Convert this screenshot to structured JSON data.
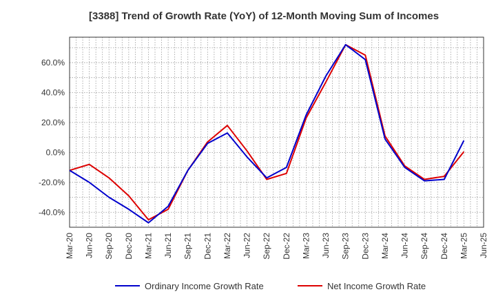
{
  "chart_data": {
    "type": "line",
    "title": "[3388]  Trend of Growth Rate (YoY) of 12-Month Moving Sum of Incomes",
    "xlabel": "",
    "ylabel": "",
    "x_tick_labels": [
      "Mar-20",
      "Jun-20",
      "Sep-20",
      "Dec-20",
      "Mar-21",
      "Jun-21",
      "Sep-21",
      "Dec-21",
      "Mar-22",
      "Jun-22",
      "Sep-22",
      "Dec-22",
      "Mar-23",
      "Jun-23",
      "Sep-23",
      "Dec-23",
      "Mar-24",
      "Jun-24",
      "Sep-24",
      "Dec-24",
      "Mar-25",
      "Jun-25"
    ],
    "y_ticks": [
      {
        "value": -40,
        "label": "-40.0%"
      },
      {
        "value": -20,
        "label": "-20.0%"
      },
      {
        "value": 0,
        "label": "0.0%"
      },
      {
        "value": 20,
        "label": "20.0%"
      },
      {
        "value": 40,
        "label": "40.0%"
      },
      {
        "value": 60,
        "label": "60.0%"
      }
    ],
    "ylim": [
      -50,
      77
    ],
    "grid": true,
    "legend_position": "bottom",
    "series": [
      {
        "name": "Ordinary Income Growth Rate",
        "color": "#0000cc",
        "values": [
          -12,
          -20,
          -30,
          -38,
          -47,
          -36,
          -12,
          6,
          13,
          -3,
          -17,
          -10,
          25,
          51,
          72,
          62,
          9,
          -10,
          -19,
          -18,
          8
        ]
      },
      {
        "name": "Net Income Growth Rate",
        "color": "#dd0000",
        "values": [
          -12,
          -8,
          -17,
          -29,
          -45,
          -38,
          -12,
          7,
          18,
          1,
          -18,
          -14,
          23,
          47,
          72,
          65,
          11,
          -9,
          -18,
          -16,
          0.5
        ]
      }
    ]
  }
}
